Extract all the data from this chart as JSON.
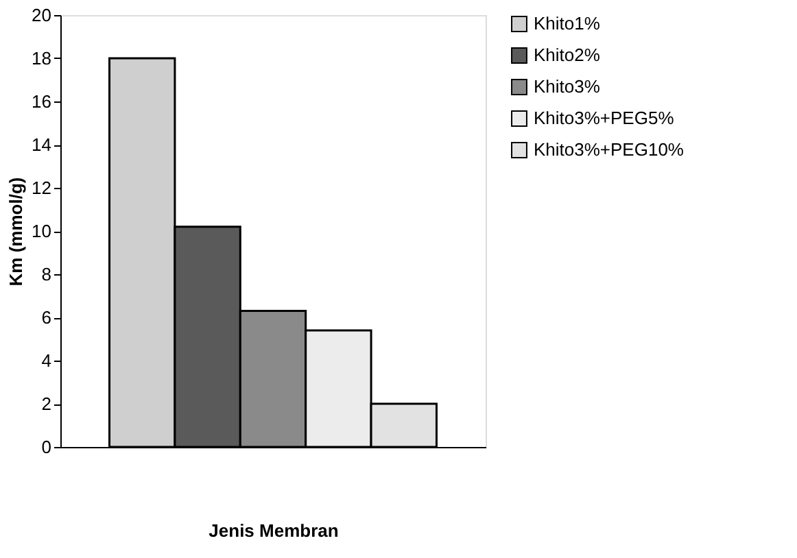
{
  "chart_data": {
    "type": "bar",
    "xlabel": "Jenis Membran",
    "ylabel": "Km (mmol/g)",
    "categories": [
      null
    ],
    "series": [
      {
        "name": "Khito1%",
        "color": "#cfcfcf",
        "values": [
          18
        ]
      },
      {
        "name": "Khito2%",
        "color": "#5a5a5a",
        "values": [
          10.2
        ]
      },
      {
        "name": "Khito3%",
        "color": "#8a8a8a",
        "values": [
          6.3
        ]
      },
      {
        "name": "Khito3%+PEG5%",
        "color": "#ececec",
        "values": [
          5.4
        ]
      },
      {
        "name": "Khito3%+PEG10%",
        "color": "#e2e2e2",
        "values": [
          2.0
        ]
      }
    ],
    "ylim": [
      0,
      20
    ],
    "yticks": [
      0,
      2,
      4,
      6,
      8,
      10,
      12,
      14,
      16,
      18,
      20
    ],
    "grid": false,
    "legend": "right",
    "tick_labels": "y"
  }
}
